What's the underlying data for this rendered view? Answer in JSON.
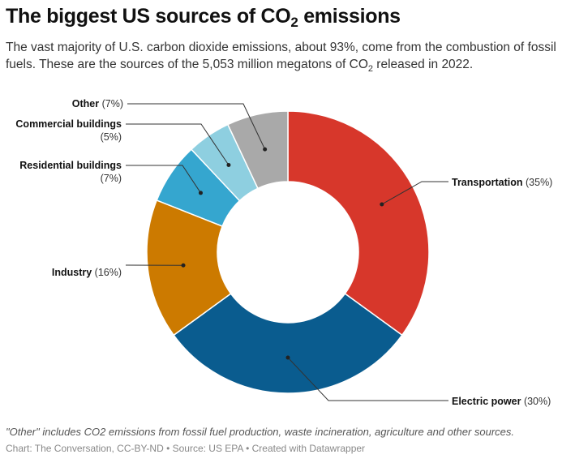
{
  "header": {
    "title_pre": "The biggest US sources of CO",
    "title_sub": "2",
    "title_post": " emissions",
    "desc_pre": "The vast majority of U.S. carbon dioxide emissions, about 93%, come from the combustion of fossil fuels. These are the sources of the 5,053 million megatons of CO",
    "desc_sub": "2",
    "desc_post": " released in 2022."
  },
  "chart_data": {
    "type": "pie",
    "variant": "donut",
    "categories": [
      "Transportation",
      "Electric power",
      "Industry",
      "Residential buildings",
      "Commercial buildings",
      "Other"
    ],
    "values": [
      35,
      30,
      16,
      7,
      5,
      7
    ],
    "value_labels": [
      "(35%)",
      "(30%)",
      "(16%)",
      "(7%)",
      "(5%)",
      "(7%)"
    ],
    "colors": [
      "#d7372b",
      "#0a5c8f",
      "#cc7a00",
      "#35a6cf",
      "#8ecfe0",
      "#a9a9a9"
    ],
    "start": "top",
    "direction": "clockwise"
  },
  "footer": {
    "note": "\"Other\" includes CO2 emissions from fossil fuel production, waste incineration, agriculture and other sources.",
    "credit": "Chart: The Conversation, CC-BY-ND • Source: US EPA • Created with Datawrapper"
  }
}
